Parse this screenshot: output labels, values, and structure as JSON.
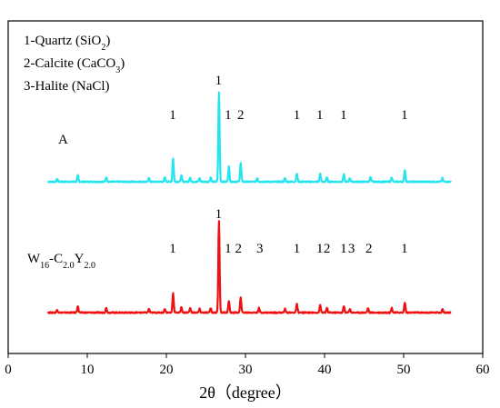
{
  "chart_data": {
    "type": "line",
    "xlabel": "2θ（degree）",
    "xlim": [
      0,
      60
    ],
    "xticks": [
      0,
      10,
      20,
      30,
      40,
      50,
      60
    ],
    "yticks_shown": false,
    "legend": [
      {
        "main": "1-Quartz (SiO",
        "sub": "2",
        "tail": ")"
      },
      {
        "main": "2-Calcite (CaCO",
        "sub": "3",
        "tail": ")"
      },
      {
        "main": "3-Halite (NaCl)",
        "sub": "",
        "tail": ""
      }
    ],
    "series": [
      {
        "name": "A",
        "label_parts": [
          {
            "t": "A",
            "sub": false
          }
        ],
        "color": "#22E5EE",
        "baseline": 0.0,
        "x_range": [
          5,
          56
        ],
        "peaks": [
          {
            "x": 6.2,
            "h": 0.03
          },
          {
            "x": 8.8,
            "h": 0.07
          },
          {
            "x": 12.4,
            "h": 0.05
          },
          {
            "x": 17.8,
            "h": 0.04
          },
          {
            "x": 19.8,
            "h": 0.05
          },
          {
            "x": 20.85,
            "h": 0.26
          },
          {
            "x": 21.9,
            "h": 0.07
          },
          {
            "x": 23.0,
            "h": 0.05
          },
          {
            "x": 24.2,
            "h": 0.04
          },
          {
            "x": 25.6,
            "h": 0.05
          },
          {
            "x": 26.65,
            "h": 1.0
          },
          {
            "x": 27.9,
            "h": 0.17
          },
          {
            "x": 29.4,
            "h": 0.21
          },
          {
            "x": 31.5,
            "h": 0.04
          },
          {
            "x": 35.0,
            "h": 0.04
          },
          {
            "x": 36.5,
            "h": 0.09
          },
          {
            "x": 39.45,
            "h": 0.09
          },
          {
            "x": 40.3,
            "h": 0.05
          },
          {
            "x": 42.45,
            "h": 0.08
          },
          {
            "x": 43.2,
            "h": 0.04
          },
          {
            "x": 45.8,
            "h": 0.05
          },
          {
            "x": 48.5,
            "h": 0.05
          },
          {
            "x": 50.15,
            "h": 0.13
          },
          {
            "x": 54.9,
            "h": 0.04
          }
        ],
        "peak_labels": [
          {
            "x": 20.8,
            "text": "1"
          },
          {
            "x": 26.6,
            "text": "1",
            "top": true
          },
          {
            "x": 27.8,
            "text": "1"
          },
          {
            "x": 29.4,
            "text": "2"
          },
          {
            "x": 36.5,
            "text": "1"
          },
          {
            "x": 39.4,
            "text": "1"
          },
          {
            "x": 42.4,
            "text": "1"
          },
          {
            "x": 50.1,
            "text": "1"
          }
        ]
      },
      {
        "name": "W16-C2.0Y2.0",
        "label_parts": [
          {
            "t": "W",
            "sub": false
          },
          {
            "t": "16",
            "sub": true
          },
          {
            "t": "-C",
            "sub": false
          },
          {
            "t": "2.0",
            "sub": true
          },
          {
            "t": "Y",
            "sub": false
          },
          {
            "t": "2.0",
            "sub": true
          }
        ],
        "color": "#EE1111",
        "baseline": 0.0,
        "x_range": [
          5,
          56
        ],
        "peaks": [
          {
            "x": 6.2,
            "h": 0.03
          },
          {
            "x": 8.8,
            "h": 0.07
          },
          {
            "x": 12.4,
            "h": 0.05
          },
          {
            "x": 17.8,
            "h": 0.04
          },
          {
            "x": 19.8,
            "h": 0.04
          },
          {
            "x": 20.85,
            "h": 0.21
          },
          {
            "x": 21.9,
            "h": 0.06
          },
          {
            "x": 23.0,
            "h": 0.05
          },
          {
            "x": 24.2,
            "h": 0.04
          },
          {
            "x": 25.6,
            "h": 0.05
          },
          {
            "x": 26.65,
            "h": 1.0
          },
          {
            "x": 27.9,
            "h": 0.13
          },
          {
            "x": 29.4,
            "h": 0.16
          },
          {
            "x": 31.7,
            "h": 0.05
          },
          {
            "x": 35.0,
            "h": 0.04
          },
          {
            "x": 36.5,
            "h": 0.09
          },
          {
            "x": 39.45,
            "h": 0.08
          },
          {
            "x": 40.3,
            "h": 0.05
          },
          {
            "x": 42.45,
            "h": 0.07
          },
          {
            "x": 43.2,
            "h": 0.04
          },
          {
            "x": 45.5,
            "h": 0.05
          },
          {
            "x": 48.5,
            "h": 0.05
          },
          {
            "x": 50.15,
            "h": 0.11
          },
          {
            "x": 54.9,
            "h": 0.04
          }
        ],
        "peak_labels": [
          {
            "x": 20.8,
            "text": "1"
          },
          {
            "x": 26.6,
            "text": "1",
            "top": true
          },
          {
            "x": 27.8,
            "text": "1"
          },
          {
            "x": 29.1,
            "text": "2"
          },
          {
            "x": 31.8,
            "text": "3"
          },
          {
            "x": 36.5,
            "text": "1"
          },
          {
            "x": 39.4,
            "text": "1"
          },
          {
            "x": 40.3,
            "text": "2"
          },
          {
            "x": 42.4,
            "text": "1"
          },
          {
            "x": 43.4,
            "text": "3"
          },
          {
            "x": 45.6,
            "text": "2"
          },
          {
            "x": 50.1,
            "text": "1"
          }
        ]
      }
    ]
  }
}
